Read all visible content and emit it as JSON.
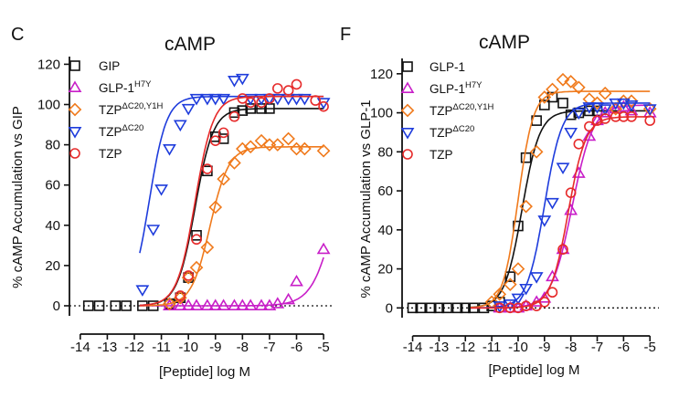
{
  "chart_data": [
    {
      "type": "scatter",
      "panel": "C",
      "title": "cAMP",
      "xlabel": "[Peptide] log M",
      "ylabel": "% cAMP Accumulation vs GIP",
      "xlim": [
        -14.4,
        -4.8
      ],
      "ylim": [
        -5,
        122
      ],
      "xticks": [
        -14,
        -13,
        -12,
        -11,
        -10,
        -9,
        -8,
        -7,
        -6,
        -5
      ],
      "yticks": [
        0,
        20,
        40,
        60,
        80,
        100,
        120
      ],
      "reference_line_y": 0,
      "series": [
        {
          "name": "GIP",
          "sup": "",
          "marker": "square",
          "color": "#111111",
          "x": [
            -13.7,
            -13.3,
            -12.7,
            -12.3,
            -11.7,
            -11.3,
            -10.7,
            -10.3,
            -10,
            -9.7,
            -9.3,
            -9,
            -8.7,
            -8.3,
            -8,
            -7.7,
            -7.3,
            -7
          ],
          "y": [
            0,
            0,
            0,
            0,
            0,
            0,
            1,
            4,
            14,
            35,
            67,
            84,
            83,
            96,
            97,
            98,
            98,
            98
          ],
          "fit": {
            "bottom": 0,
            "top": 98,
            "logEC50": -9.75,
            "hill": 1.3
          }
        },
        {
          "name": "GLP-1",
          "sup": "H7Y",
          "marker": "triangle-up",
          "color": "#c81ec8",
          "x": [
            -10.7,
            -10.3,
            -10,
            -9.7,
            -9.3,
            -9,
            -8.7,
            -8.3,
            -8,
            -7.7,
            -7.3,
            -7,
            -6.7,
            -6.3,
            -6,
            -5
          ],
          "y": [
            0,
            0,
            0,
            0,
            0,
            0,
            0,
            0,
            0,
            0,
            0,
            0,
            1,
            3,
            12,
            28
          ],
          "fit": {
            "bottom": 0,
            "top": 100,
            "logEC50": -4.5,
            "hill": 1.0
          }
        },
        {
          "name": "TZP",
          "sup": "ΔC20,Y1H",
          "marker": "diamond",
          "color": "#f07a1c",
          "x": [
            -10.7,
            -10.3,
            -10,
            -9.7,
            -9.3,
            -9,
            -8.7,
            -8.3,
            -8,
            -7.7,
            -7.3,
            -7,
            -6.7,
            -6.3,
            -6,
            -5.7,
            -5
          ],
          "y": [
            1,
            4,
            14,
            19,
            29,
            49,
            63,
            71,
            78,
            79,
            82,
            80,
            80,
            83,
            78,
            78,
            77
          ],
          "fit": {
            "bottom": 0,
            "top": 79,
            "logEC50": -9.2,
            "hill": 1.25
          }
        },
        {
          "name": "TZP",
          "sup": "ΔC20",
          "marker": "triangle-down",
          "color": "#1e3cdc",
          "x": [
            -11.7,
            -11.3,
            -11,
            -10.7,
            -10.3,
            -10,
            -9.7,
            -9.3,
            -9,
            -8.7,
            -8.3,
            -8,
            -7.7,
            -7.3,
            -7,
            -6.7,
            -6.3,
            -6,
            -5.7,
            -5
          ],
          "y": [
            8,
            38,
            58,
            78,
            90,
            98,
            103,
            103,
            103,
            103,
            112,
            113,
            103,
            103,
            103,
            103,
            103,
            103,
            103,
            101
          ],
          "fit": {
            "bottom": 0,
            "top": 104,
            "logEC50": -11.45,
            "hill": 1.35
          }
        },
        {
          "name": "TZP",
          "sup": "",
          "marker": "circle",
          "color": "#e62a2a",
          "x": [
            -10.3,
            -10,
            -9.7,
            -9.3,
            -9,
            -8.7,
            -8.3,
            -8,
            -7.7,
            -7.3,
            -7,
            -6.7,
            -6.3,
            -6,
            -5.3,
            -5
          ],
          "y": [
            5,
            15,
            33,
            68,
            82,
            86,
            94,
            103,
            101,
            101,
            103,
            108,
            107,
            110,
            102,
            99
          ],
          "fit": {
            "bottom": 0,
            "top": 104,
            "logEC50": -9.75,
            "hill": 1.3
          }
        }
      ]
    },
    {
      "type": "scatter",
      "panel": "F",
      "title": "cAMP",
      "xlabel": "[Peptide] log M",
      "ylabel": "% cAMP Accumulation vs GLP-1",
      "xlim": [
        -14.4,
        -4.8
      ],
      "ylim": [
        -5,
        126
      ],
      "xticks": [
        -14,
        -13,
        -12,
        -11,
        -10,
        -9,
        -8,
        -7,
        -6,
        -5
      ],
      "yticks": [
        0,
        20,
        40,
        60,
        80,
        100,
        120
      ],
      "reference_line_y": 0,
      "series": [
        {
          "name": "GLP-1",
          "sup": "",
          "marker": "square",
          "color": "#111111",
          "x": [
            -14,
            -13.7,
            -13.3,
            -13,
            -12.7,
            -12.3,
            -12,
            -11.7,
            -11.3,
            -11,
            -10.7,
            -10.3,
            -10,
            -9.7,
            -9.3,
            -9,
            -8.7,
            -8.3,
            -8,
            -7.7,
            -7.3,
            -7
          ],
          "y": [
            0,
            0,
            0,
            0,
            0,
            0,
            0,
            0,
            0,
            1,
            3,
            16,
            42,
            77,
            96,
            104,
            108,
            105,
            99,
            100,
            101,
            101
          ],
          "fit": {
            "bottom": 0,
            "top": 101,
            "logEC50": -9.85,
            "hill": 1.3
          }
        },
        {
          "name": "GLP-1",
          "sup": "H7Y",
          "marker": "triangle-up",
          "color": "#c81ec8",
          "x": [
            -10.7,
            -10.3,
            -10,
            -9.7,
            -9.3,
            -9,
            -8.7,
            -8.3,
            -8,
            -7.7,
            -7.3,
            -7,
            -6.7,
            -6.3,
            -6,
            -5.7,
            -5
          ],
          "y": [
            0,
            0,
            0,
            1,
            3,
            5,
            16,
            30,
            50,
            69,
            88,
            96,
            100,
            102,
            103,
            101,
            100
          ],
          "fit": {
            "bottom": 0,
            "top": 104,
            "logEC50": -7.95,
            "hill": 1.1
          }
        },
        {
          "name": "TZP",
          "sup": "ΔC20,Y1H",
          "marker": "diamond",
          "color": "#f07a1c",
          "x": [
            -11,
            -10.7,
            -10.3,
            -10,
            -9.7,
            -9.3,
            -9,
            -8.7,
            -8.3,
            -8,
            -7.7,
            -7.3,
            -7,
            -6.7,
            -6.3,
            -6,
            -5.7,
            -5
          ],
          "y": [
            3,
            7,
            12,
            20,
            52,
            80,
            108,
            112,
            117,
            116,
            113,
            107,
            105,
            110,
            102,
            106,
            106,
            102
          ],
          "fit": {
            "bottom": 0,
            "top": 111,
            "logEC50": -10.0,
            "hill": 1.5
          }
        },
        {
          "name": "TZP",
          "sup": "ΔC20",
          "marker": "triangle-down",
          "color": "#1e3cdc",
          "x": [
            -10.7,
            -10.3,
            -10,
            -9.7,
            -9.3,
            -9,
            -8.7,
            -8.3,
            -8,
            -7.7,
            -7.3,
            -7,
            -6.7,
            -6.3,
            -6,
            -5.7,
            -5
          ],
          "y": [
            1,
            2,
            5,
            10,
            16,
            45,
            54,
            72,
            90,
            100,
            103,
            103,
            102,
            105,
            105,
            104,
            102
          ],
          "fit": {
            "bottom": 0,
            "top": 105,
            "logEC50": -9.0,
            "hill": 1.3
          }
        },
        {
          "name": "TZP",
          "sup": "",
          "marker": "circle",
          "color": "#e62a2a",
          "x": [
            -10.7,
            -10.3,
            -10,
            -9.7,
            -9.3,
            -9,
            -8.7,
            -8.3,
            -8,
            -7.7,
            -7.3,
            -7,
            -6.7,
            -6.3,
            -6,
            -5.7,
            -5
          ],
          "y": [
            0,
            0,
            0,
            1,
            1,
            3,
            8,
            30,
            59,
            84,
            93,
            96,
            97,
            98,
            98,
            98,
            96
          ],
          "fit": {
            "bottom": 0,
            "top": 98,
            "logEC50": -8.1,
            "hill": 1.3
          }
        }
      ]
    }
  ]
}
